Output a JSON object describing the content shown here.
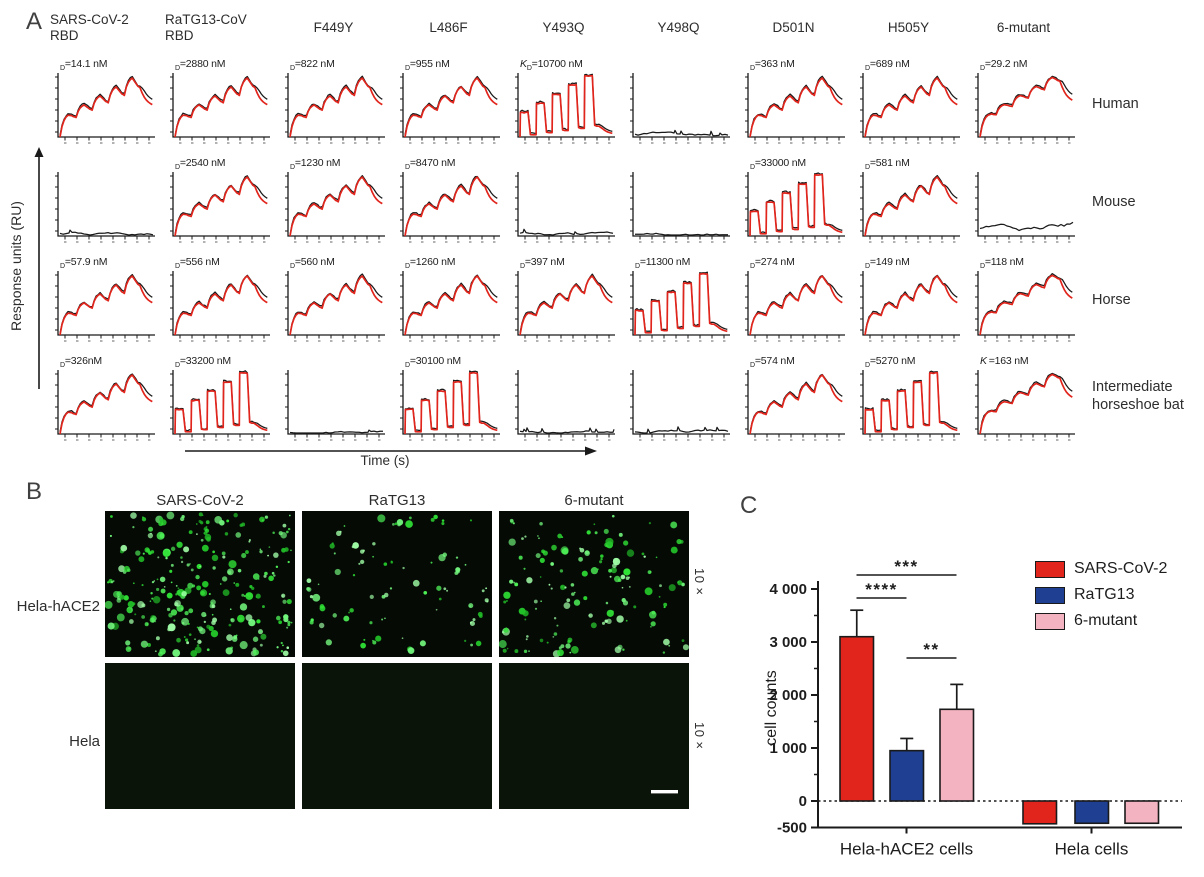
{
  "panelA": {
    "label": "A",
    "ylabel": "Response units (RU)",
    "xlabel": "Time (s)",
    "columns": [
      "SARS-CoV-2\nRBD",
      "RaTG13-CoV\nRBD",
      "F449Y",
      "L486F",
      "Y493Q",
      "Y498Q",
      "D501N",
      "H505Y",
      "6-mutant"
    ],
    "rows": [
      "Human",
      "Mouse",
      "Horse",
      "Intermediate horseshoe bat"
    ],
    "cells": [
      [
        {
          "prefix": "D",
          "kd": "14.1 nM",
          "trace": "humps"
        },
        {
          "prefix": "D",
          "kd": "2880 nM",
          "trace": "humps"
        },
        {
          "prefix": "D",
          "kd": "822 nM",
          "trace": "humps"
        },
        {
          "prefix": "D",
          "kd": "955 nM",
          "trace": "humps"
        },
        {
          "prefix": "KD",
          "kd": "10700 nM",
          "trace": "square"
        },
        {
          "prefix": null,
          "kd": null,
          "trace": "flat"
        },
        {
          "prefix": "D",
          "kd": "363 nM",
          "trace": "humps"
        },
        {
          "prefix": "D",
          "kd": "689 nM",
          "trace": "humps"
        },
        {
          "prefix": "D",
          "kd": "29.2 nM",
          "trace": "rising"
        }
      ],
      [
        {
          "prefix": null,
          "kd": null,
          "trace": "flat"
        },
        {
          "prefix": "D",
          "kd": "2540 nM",
          "trace": "humps"
        },
        {
          "prefix": "D",
          "kd": "1230 nM",
          "trace": "humps"
        },
        {
          "prefix": "D",
          "kd": "8470 nM",
          "trace": "humps"
        },
        {
          "prefix": null,
          "kd": null,
          "trace": "flat"
        },
        {
          "prefix": null,
          "kd": null,
          "trace": "flat"
        },
        {
          "prefix": "D",
          "kd": "33000 nM",
          "trace": "square"
        },
        {
          "prefix": "D",
          "kd": "581 nM",
          "trace": "humps"
        },
        {
          "prefix": null,
          "kd": null,
          "trace": "noisy"
        }
      ],
      [
        {
          "prefix": "D",
          "kd": "57.9 nM",
          "trace": "humps"
        },
        {
          "prefix": "D",
          "kd": "556 nM",
          "trace": "humps"
        },
        {
          "prefix": "D",
          "kd": "560 nM",
          "trace": "humps"
        },
        {
          "prefix": "D",
          "kd": "1260 nM",
          "trace": "humps"
        },
        {
          "prefix": "D",
          "kd": "397 nM",
          "trace": "humps"
        },
        {
          "prefix": "D",
          "kd": "11300 nM",
          "trace": "square"
        },
        {
          "prefix": "D",
          "kd": "274 nM",
          "trace": "humps"
        },
        {
          "prefix": "D",
          "kd": "149 nM",
          "trace": "humps"
        },
        {
          "prefix": "D",
          "kd": "118 nM",
          "trace": "rising"
        }
      ],
      [
        {
          "prefix": "D",
          "kd": "326nM",
          "trace": "humps"
        },
        {
          "prefix": "D",
          "kd": "33200 nM",
          "trace": "square"
        },
        {
          "prefix": null,
          "kd": null,
          "trace": "flat"
        },
        {
          "prefix": "D",
          "kd": "30100 nM",
          "trace": "square"
        },
        {
          "prefix": null,
          "kd": null,
          "trace": "flat"
        },
        {
          "prefix": null,
          "kd": null,
          "trace": "flat"
        },
        {
          "prefix": "D",
          "kd": "574 nM",
          "trace": "humps"
        },
        {
          "prefix": "D",
          "kd": "5270 nM",
          "trace": "square"
        },
        {
          "prefix": "K",
          "kd": "163 nM",
          "trace": "rising"
        }
      ]
    ],
    "trace_colors": {
      "fit": "#e1251c",
      "data": "#1a1a1a"
    }
  },
  "panelB": {
    "label": "B",
    "columns": [
      "SARS-CoV-2",
      "RaTG13",
      "6-mutant"
    ],
    "rows": [
      "Hela-hACE2",
      "Hela"
    ],
    "magnification": "10×",
    "cell_density": [
      [
        "dense",
        "sparse",
        "medium"
      ],
      [
        "none",
        "none",
        "none"
      ]
    ],
    "signal_color": "#3ae03a"
  },
  "panelC": {
    "label": "C"
  },
  "chart_data": {
    "type": "bar",
    "categories": [
      "Hela-hACE2 cells",
      "Hela cells"
    ],
    "series": [
      {
        "name": "SARS-CoV-2",
        "color": "#e1251c",
        "values": [
          3100,
          -430
        ],
        "errors": [
          500,
          0
        ]
      },
      {
        "name": "RaTG13",
        "color": "#1e3f92",
        "values": [
          950,
          -420
        ],
        "errors": [
          230,
          0
        ]
      },
      {
        "name": "6-mutant",
        "color": "#f4b3c1",
        "values": [
          1730,
          -420
        ],
        "errors": [
          470,
          0
        ]
      }
    ],
    "ylabel": "cell counts",
    "ylim": [
      -500,
      4000
    ],
    "yticks": [
      4000,
      3000,
      2000,
      1000,
      0,
      -500
    ],
    "ytick_labels": [
      "4 000",
      "3 000",
      "2 000",
      "1 000",
      "0",
      "-500"
    ],
    "zero_line": "dotted",
    "grid": false,
    "legend_position": "top-right",
    "significance": [
      {
        "from": "SARS-CoV-2",
        "to": "6-mutant",
        "label": "***"
      },
      {
        "from": "SARS-CoV-2",
        "to": "RaTG13",
        "label": "****"
      },
      {
        "from": "RaTG13",
        "to": "6-mutant",
        "label": "**"
      }
    ]
  }
}
